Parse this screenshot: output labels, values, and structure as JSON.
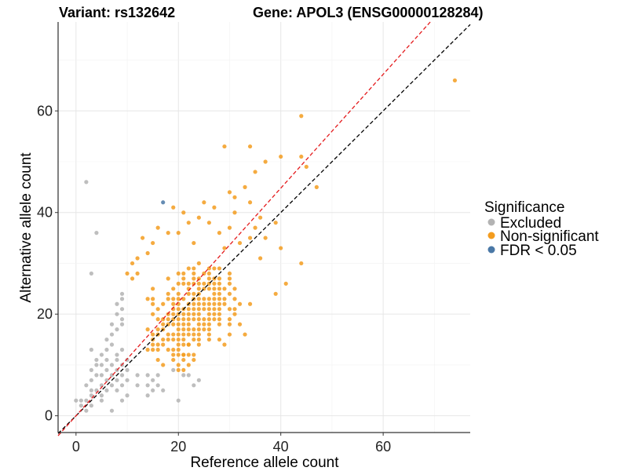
{
  "chart_data": {
    "type": "scatter",
    "title_left": "Variant: rs132642",
    "title_right": "Gene: APOL3 (ENSG00000128284)",
    "xlabel": "Reference allele count",
    "ylabel": "Alternative allele count",
    "xlim": [
      -3.5,
      77
    ],
    "ylim": [
      -3.3,
      77.5
    ],
    "x_ticks": [
      0,
      20,
      40,
      60
    ],
    "y_ticks": [
      0,
      20,
      40,
      60
    ],
    "x_tick_labels": [
      "0",
      "20",
      "40",
      "60"
    ],
    "y_tick_labels": [
      "0",
      "20",
      "40",
      "60"
    ],
    "grid": true,
    "legend": {
      "title": "Significance",
      "placement": "right",
      "entries": [
        {
          "label": "Excluded",
          "color": "#b3b3b3"
        },
        {
          "label": "Non-significant",
          "color": "#f39c1f"
        },
        {
          "label": "FDR < 0.05",
          "color": "#4a78a6"
        }
      ]
    },
    "reference_lines": [
      {
        "name": "identity",
        "slope": 1,
        "intercept": 0,
        "color": "#000000",
        "dash": true
      },
      {
        "name": "fitted",
        "slope": 1.12,
        "intercept": 0,
        "color": "#e41a1c",
        "dash": true
      }
    ],
    "series": [
      {
        "name": "Excluded",
        "color": "#b3b3b3",
        "points": [
          [
            0,
            3
          ],
          [
            1,
            2
          ],
          [
            1,
            3
          ],
          [
            2,
            1
          ],
          [
            2,
            3
          ],
          [
            2,
            6
          ],
          [
            3,
            2
          ],
          [
            3,
            4
          ],
          [
            3,
            5
          ],
          [
            3,
            7
          ],
          [
            3,
            9
          ],
          [
            3,
            13
          ],
          [
            4,
            5
          ],
          [
            4,
            8
          ],
          [
            4,
            10
          ],
          [
            4,
            11
          ],
          [
            5,
            3
          ],
          [
            5,
            4
          ],
          [
            5,
            6
          ],
          [
            5,
            8
          ],
          [
            5,
            10
          ],
          [
            5,
            12
          ],
          [
            6,
            5
          ],
          [
            6,
            7
          ],
          [
            6,
            9
          ],
          [
            6,
            11
          ],
          [
            6,
            13
          ],
          [
            6,
            15
          ],
          [
            7,
            1
          ],
          [
            7,
            6
          ],
          [
            7,
            8
          ],
          [
            7,
            10
          ],
          [
            7,
            14
          ],
          [
            7,
            16
          ],
          [
            8,
            5
          ],
          [
            8,
            7
          ],
          [
            8,
            9
          ],
          [
            8,
            11
          ],
          [
            8,
            12
          ],
          [
            8,
            17
          ],
          [
            9,
            3
          ],
          [
            9,
            6
          ],
          [
            9,
            8
          ],
          [
            9,
            10
          ],
          [
            9,
            13
          ],
          [
            9,
            18
          ],
          [
            10,
            4
          ],
          [
            10,
            7
          ],
          [
            10,
            9
          ],
          [
            10,
            11
          ],
          [
            12,
            6
          ],
          [
            12,
            8
          ],
          [
            14,
            4
          ],
          [
            14,
            6
          ],
          [
            14,
            8
          ],
          [
            15,
            5
          ],
          [
            15,
            7
          ],
          [
            16,
            6
          ],
          [
            16,
            8
          ],
          [
            17,
            5
          ],
          [
            19,
            9
          ],
          [
            20,
            3
          ],
          [
            21,
            8
          ],
          [
            22,
            8
          ],
          [
            23,
            6
          ],
          [
            24,
            7
          ],
          [
            4,
            36
          ],
          [
            2,
            46
          ],
          [
            3,
            28
          ],
          [
            9,
            24
          ],
          [
            9,
            23
          ],
          [
            8,
            20
          ],
          [
            9,
            19
          ],
          [
            7,
            18
          ],
          [
            9,
            21
          ],
          [
            8,
            22
          ]
        ]
      },
      {
        "name": "Non-significant",
        "color": "#f39c1f",
        "points": [
          [
            74,
            66
          ],
          [
            44,
            59
          ],
          [
            34,
            53
          ],
          [
            29,
            53
          ],
          [
            40,
            51
          ],
          [
            44,
            51
          ],
          [
            37,
            50
          ],
          [
            45,
            49
          ],
          [
            35,
            48
          ],
          [
            47,
            45
          ],
          [
            33,
            45
          ],
          [
            30,
            44
          ],
          [
            31,
            43
          ],
          [
            25,
            42
          ],
          [
            34,
            42
          ],
          [
            27,
            41
          ],
          [
            19,
            41
          ],
          [
            21,
            40
          ],
          [
            31,
            40
          ],
          [
            24,
            39
          ],
          [
            36,
            39
          ],
          [
            26,
            38
          ],
          [
            39,
            38
          ],
          [
            30,
            37
          ],
          [
            35,
            37
          ],
          [
            20,
            36
          ],
          [
            28,
            36
          ],
          [
            34,
            35
          ],
          [
            37,
            35
          ],
          [
            23,
            34
          ],
          [
            32,
            34
          ],
          [
            40,
            33
          ],
          [
            29,
            33
          ],
          [
            36,
            31
          ],
          [
            44,
            30
          ],
          [
            41,
            26
          ],
          [
            39,
            24
          ],
          [
            34,
            22
          ],
          [
            32,
            18
          ],
          [
            29,
            14
          ],
          [
            30,
            16
          ],
          [
            33,
            16
          ],
          [
            13,
            35
          ],
          [
            15,
            34
          ],
          [
            14,
            32
          ],
          [
            12,
            28
          ],
          [
            18,
            36
          ],
          [
            16,
            37
          ],
          [
            22,
            38
          ],
          [
            10,
            28
          ],
          [
            11,
            27
          ],
          [
            11,
            30
          ],
          [
            12,
            31
          ]
        ]
      },
      {
        "name": "FDR < 0.05",
        "color": "#4a78a6",
        "points": [
          [
            17,
            42
          ]
        ]
      }
    ],
    "dense_clusters": [
      {
        "series": "Non-significant",
        "x_range": [
          10,
          34
        ],
        "y_range": [
          11,
          32
        ]
      },
      {
        "series": "Non-significant",
        "x_range": [
          15,
          26
        ],
        "y_range": [
          8,
          14
        ]
      }
    ]
  }
}
